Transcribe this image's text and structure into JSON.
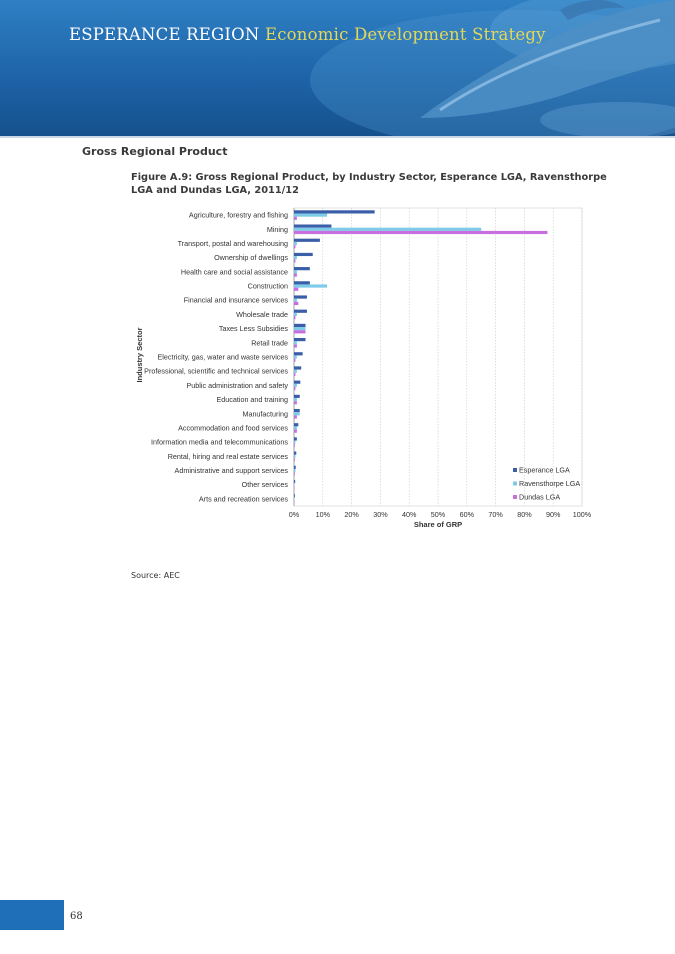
{
  "header": {
    "region": "ESPERANCE REGION",
    "subtitle": "Economic Development Strategy"
  },
  "section_heading": "Gross Regional Product",
  "figure_title": "Figure A.9: Gross Regional Product, by Industry Sector, Esperance LGA, Ravensthorpe LGA and Dundas LGA, 2011/12",
  "source": "Source: AEC",
  "page_number": "68",
  "colors": {
    "banner": "#1e64a8",
    "page_tab": "#1e6fb8",
    "esperance": "#3a5ea8",
    "ravensthorpe": "#7ecbe8",
    "dundas": "#c86fe0"
  },
  "chart_data": {
    "type": "bar",
    "orientation": "horizontal",
    "title": "",
    "xlabel": "Share of GRP",
    "ylabel": "Industry Sector",
    "xlim": [
      0,
      100
    ],
    "x_ticks": [
      "0%",
      "10%",
      "20%",
      "30%",
      "40%",
      "50%",
      "60%",
      "70%",
      "80%",
      "90%",
      "100%"
    ],
    "grid": "vertical dashed",
    "legend_position": "bottom-right",
    "categories": [
      "Agriculture, forestry and fishing",
      "Mining",
      "Transport, postal and warehousing",
      "Ownership of dwellings",
      "Health care and social assistance",
      "Construction",
      "Financial and insurance services",
      "Wholesale trade",
      "Taxes Less Subsidies",
      "Retail trade",
      "Electricity, gas, water and waste services",
      "Professional, scientific and technical services",
      "Public administration and safety",
      "Education and training",
      "Manufacturing",
      "Accommodation and food services",
      "Information media and telecommunications",
      "Rental, hiring and real estate services",
      "Administrative and support services",
      "Other services",
      "Arts and recreation services"
    ],
    "series": [
      {
        "name": "Esperance LGA",
        "color": "#3a5ea8",
        "values": [
          28,
          13,
          9,
          6.5,
          5.5,
          5.5,
          4.5,
          4.5,
          4,
          4,
          3,
          2.5,
          2.2,
          2,
          2,
          1.5,
          1,
          0.8,
          0.6,
          0.4,
          0.3
        ]
      },
      {
        "name": "Ravensthorpe LGA",
        "color": "#7ecbe8",
        "values": [
          11.5,
          65,
          1,
          1,
          1,
          11.5,
          1,
          1,
          4,
          1,
          1,
          1,
          1,
          1,
          2,
          1,
          0.5,
          0.5,
          0.5,
          0.2,
          0.2
        ]
      },
      {
        "name": "Dundas LGA",
        "color": "#c86fe0",
        "values": [
          1,
          88,
          0.5,
          0.5,
          1,
          1.5,
          1.5,
          0.5,
          4,
          1,
          0.5,
          0.5,
          0.5,
          1,
          1,
          1,
          0.3,
          0.3,
          0.3,
          0.1,
          0.1
        ]
      }
    ]
  }
}
